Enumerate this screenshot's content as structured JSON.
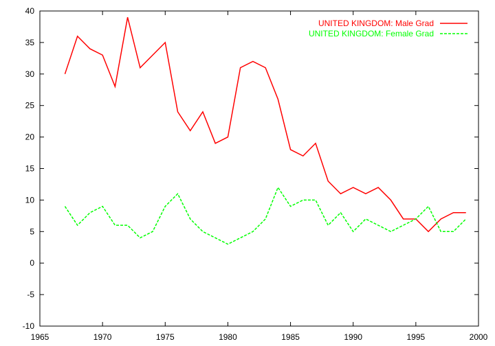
{
  "chart_data": {
    "type": "line",
    "x": [
      1967,
      1968,
      1969,
      1970,
      1971,
      1972,
      1973,
      1974,
      1975,
      1976,
      1977,
      1978,
      1979,
      1980,
      1981,
      1982,
      1983,
      1984,
      1985,
      1986,
      1987,
      1988,
      1989,
      1990,
      1991,
      1992,
      1993,
      1994,
      1995,
      1996,
      1997,
      1998,
      1999
    ],
    "series": [
      {
        "name": "UNITED KINGDOM: Male Grad",
        "color": "#ff0000",
        "dash": "solid",
        "values": [
          30,
          36,
          34,
          33,
          28,
          39,
          31,
          33,
          35,
          24,
          21,
          24,
          19,
          20,
          31,
          32,
          31,
          26,
          18,
          17,
          19,
          13,
          11,
          12,
          11,
          12,
          10,
          7,
          7,
          5,
          7,
          8,
          8
        ]
      },
      {
        "name": "UNITED KINGDOM: Female Grad",
        "color": "#00ff00",
        "dash": "dashed",
        "values": [
          9,
          6,
          8,
          9,
          6,
          6,
          4,
          5,
          9,
          11,
          7,
          5,
          4,
          3,
          4,
          5,
          7,
          12,
          9,
          10,
          10,
          6,
          8,
          5,
          7,
          6,
          5,
          6,
          7,
          9,
          5,
          5,
          7
        ]
      }
    ],
    "xlim": [
      1965,
      2000
    ],
    "ylim": [
      -10,
      40
    ],
    "xticks": [
      1965,
      1970,
      1975,
      1980,
      1985,
      1990,
      1995,
      2000
    ],
    "yticks": [
      -10,
      -5,
      0,
      5,
      10,
      15,
      20,
      25,
      30,
      35,
      40
    ],
    "grid": false,
    "legend_position": "top-right"
  }
}
